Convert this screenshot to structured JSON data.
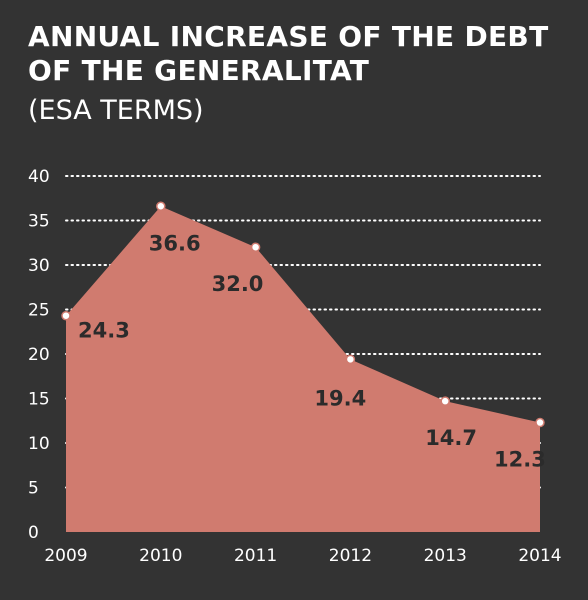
{
  "title": "ANNUAL INCREASE OF THE DEBT OF THE GENERALITAT",
  "subtitle": "(ESA TERMS)",
  "colors": {
    "background": "#333333",
    "area_fill": "#d07b6f",
    "grid": "#ffffff",
    "text": "#ffffff",
    "data_label": "#2b2b2b",
    "marker": "#ffffff"
  },
  "chart_data": {
    "type": "area",
    "title": "ANNUAL INCREASE OF THE DEBT OF THE GENERALITAT",
    "subtitle": "(ESA TERMS)",
    "categories": [
      "2009",
      "2010",
      "2011",
      "2012",
      "2013",
      "2014"
    ],
    "values": [
      24.3,
      36.6,
      32.0,
      19.4,
      14.7,
      12.3
    ],
    "data_labels": [
      "24.3",
      "36.6",
      "32.0",
      "19.4",
      "14.7",
      "12.3"
    ],
    "yticks": [
      "0",
      "5",
      "10",
      "15",
      "20",
      "25",
      "30",
      "35",
      "40"
    ],
    "ylim": [
      0,
      40
    ],
    "grid": true,
    "grid_style": "dotted",
    "legend": "none"
  }
}
